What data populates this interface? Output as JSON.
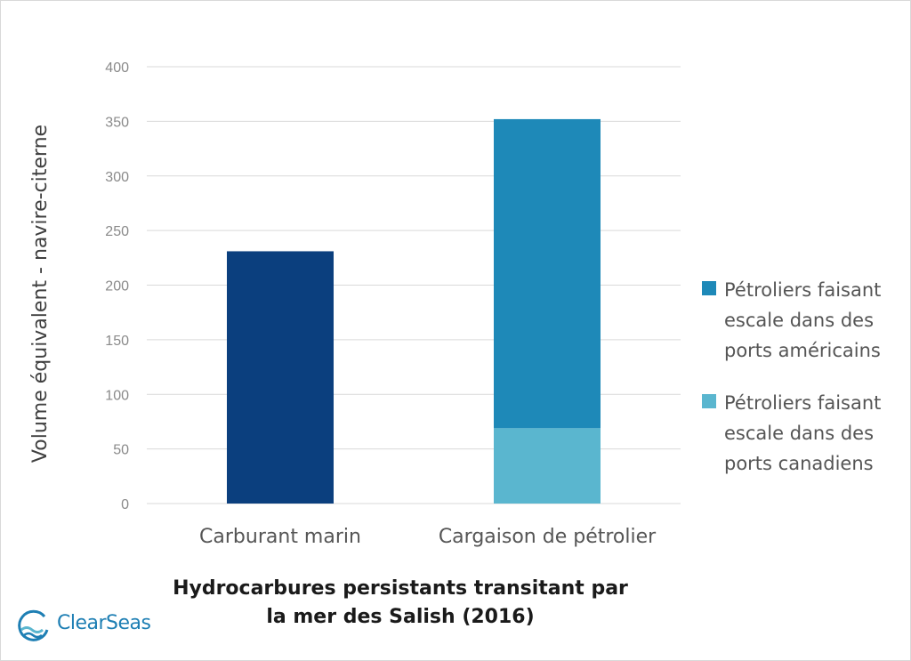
{
  "chart_data": {
    "type": "bar",
    "stacked": true,
    "title_lines": [
      "Hydrocarbures persistants transitant par",
      "la mer des Salish (2016)"
    ],
    "xlabel": "",
    "ylabel": "Volume équivalent - navire-citerne",
    "ylim": [
      0,
      400
    ],
    "yticks": [
      "0",
      "50",
      "100",
      "150",
      "200",
      "250",
      "300",
      "350",
      "400"
    ],
    "grid": true,
    "legend_position": "right",
    "categories": [
      "Carburant marin",
      "Cargaison de pétrolier"
    ],
    "series": [
      {
        "name": "",
        "color": "#0b3f7e",
        "values": [
          231,
          0
        ]
      },
      {
        "name": "Pétroliers faisant escale dans des ports canadiens",
        "color": "#5ab6cf",
        "values": [
          0,
          69
        ]
      },
      {
        "name": "Pétroliers faisant escale dans des ports américains",
        "color": "#1e89b8",
        "values": [
          0,
          283
        ]
      }
    ],
    "legend": [
      {
        "lines": [
          "Pétroliers faisant",
          "escale dans des",
          "ports américains"
        ],
        "color": "#1e89b8"
      },
      {
        "lines": [
          "Pétroliers faisant",
          "escale dans des",
          "ports canadiens"
        ],
        "color": "#5ab6cf"
      }
    ]
  },
  "logo": {
    "text": "ClearSeas",
    "icon": "wave-circle-icon",
    "color": "#1e7fb4"
  }
}
